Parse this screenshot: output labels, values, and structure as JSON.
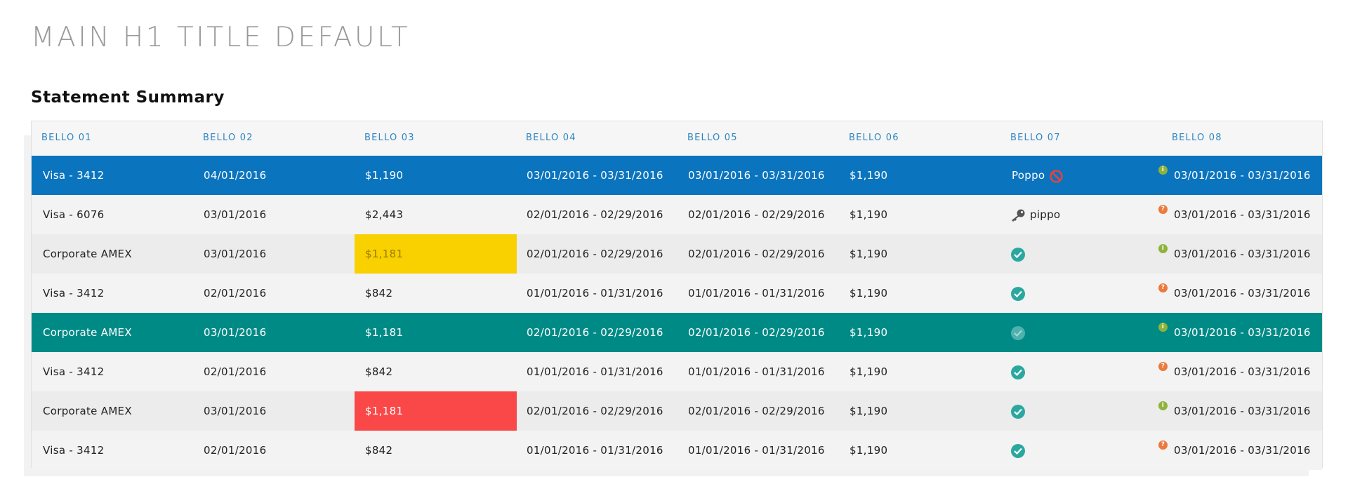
{
  "page": {
    "title": "MAIN H1 TITLE DEFAULT",
    "subtitle": "Statement Summary"
  },
  "table": {
    "headers": [
      "BELLO 01",
      "BELLO 02",
      "BELLO 03",
      "BELLO 04",
      "BELLO 05",
      "BELLO 06",
      "BELLO 07",
      "BELLO 08"
    ],
    "rows": [
      {
        "c1": "Visa - 3412",
        "c2": "04/01/2016",
        "c3": "$1,190",
        "c4": "03/01/2016 - 03/31/2016",
        "c5": "03/01/2016 - 03/31/2016",
        "c6": "$1,190",
        "c7_label": "Poppo",
        "c7_icon": "ban-icon",
        "c8": "03/01/2016 - 03/31/2016",
        "c8_icon": "info-icon",
        "state": "selected-blue"
      },
      {
        "c1": "Visa - 6076",
        "c2": "03/01/2016",
        "c3": "$2,443",
        "c4": "02/01/2016 - 02/29/2016",
        "c5": "02/01/2016 - 02/29/2016",
        "c6": "$1,190",
        "c7_label": "pippo",
        "c7_icon": "key-icon",
        "c8": "03/01/2016 - 03/31/2016",
        "c8_icon": "help-icon",
        "state": "default"
      },
      {
        "c1": "Corporate AMEX",
        "c2": "03/01/2016",
        "c3": "$1,181",
        "c3_highlight": "yellow",
        "c4": "02/01/2016 - 02/29/2016",
        "c5": "02/01/2016 - 02/29/2016",
        "c6": "$1,190",
        "c7_icon": "check-icon",
        "c8": "03/01/2016 - 03/31/2016",
        "c8_icon": "info-icon",
        "state": "default"
      },
      {
        "c1": "Visa - 3412",
        "c2": "02/01/2016",
        "c3": "$842",
        "c4": "01/01/2016 - 01/31/2016",
        "c5": "01/01/2016 - 01/31/2016",
        "c6": "$1,190",
        "c7_icon": "check-icon",
        "c8": "03/01/2016 - 03/31/2016",
        "c8_icon": "help-icon",
        "state": "default"
      },
      {
        "c1": "Corporate AMEX",
        "c2": "03/01/2016",
        "c3": "$1,181",
        "c4": "02/01/2016 - 02/29/2016",
        "c5": "02/01/2016 - 02/29/2016",
        "c6": "$1,190",
        "c7_icon": "check-icon",
        "c8": "03/01/2016 - 03/31/2016",
        "c8_icon": "info-icon",
        "state": "selected-teal"
      },
      {
        "c1": "Visa - 3412",
        "c2": "02/01/2016",
        "c3": "$842",
        "c4": "01/01/2016 - 01/31/2016",
        "c5": "01/01/2016 - 01/31/2016",
        "c6": "$1,190",
        "c7_icon": "check-icon",
        "c8": "03/01/2016 - 03/31/2016",
        "c8_icon": "help-icon",
        "state": "default"
      },
      {
        "c1": "Corporate AMEX",
        "c2": "03/01/2016",
        "c3": "$1,181",
        "c3_highlight": "red",
        "c4": "02/01/2016 - 02/29/2016",
        "c5": "02/01/2016 - 02/29/2016",
        "c6": "$1,190",
        "c7_icon": "check-icon",
        "c8": "03/01/2016 - 03/31/2016",
        "c8_icon": "info-icon",
        "state": "default"
      },
      {
        "c1": "Visa - 3412",
        "c2": "02/01/2016",
        "c3": "$842",
        "c4": "01/01/2016 - 01/31/2016",
        "c5": "01/01/2016 - 01/31/2016",
        "c6": "$1,190",
        "c7_icon": "check-icon",
        "c8": "03/01/2016 - 03/31/2016",
        "c8_icon": "help-icon",
        "state": "default"
      }
    ]
  },
  "colors": {
    "header_text": "#2e86c1",
    "row_selected_blue": "#0a74be",
    "row_selected_teal": "#008a86",
    "highlight_yellow": "#f9d000",
    "highlight_red": "#fa4747",
    "check": "#2aa8a0",
    "info": "#8fb33a",
    "help": "#ec7a3c",
    "ban": "#e8423f"
  }
}
